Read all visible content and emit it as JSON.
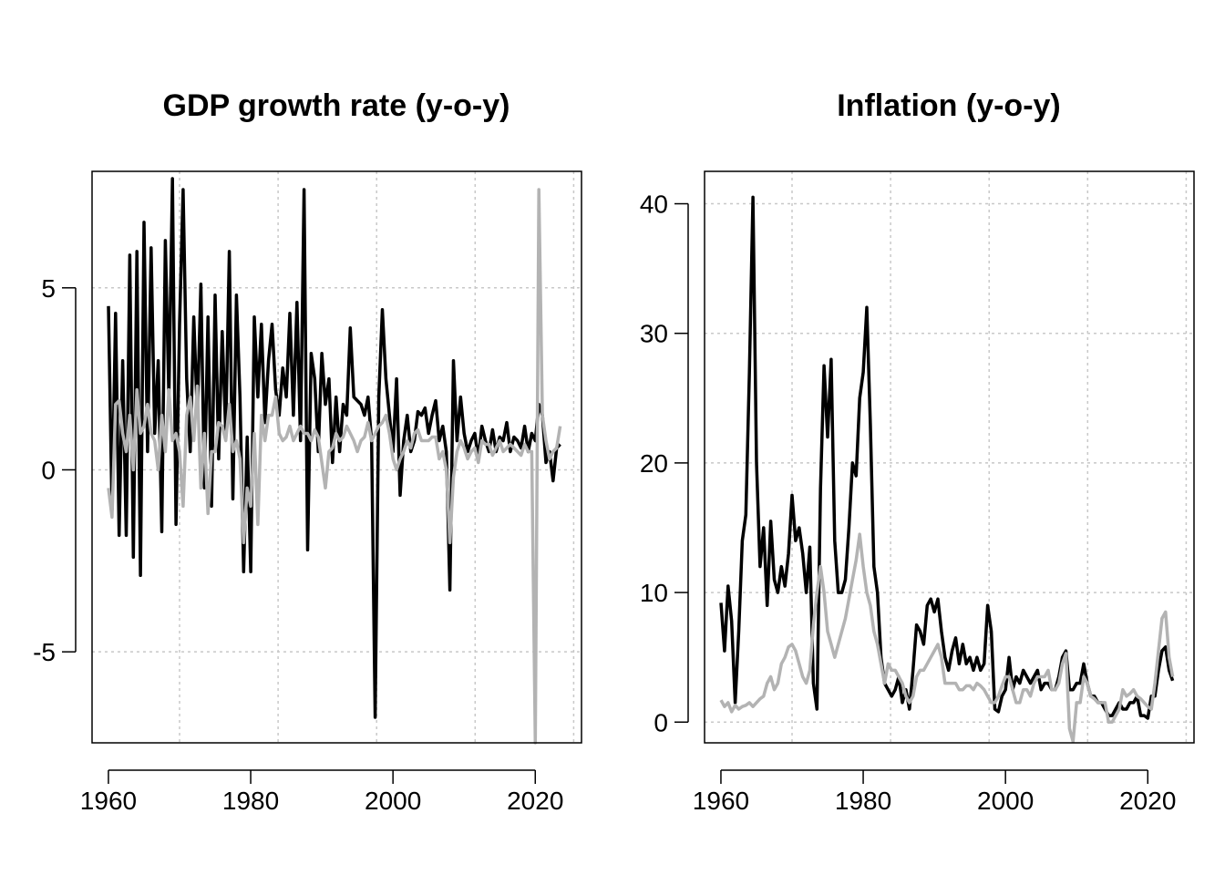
{
  "colors": {
    "series_primary": "#000000",
    "series_secondary": "#b3b3b3",
    "grid": "#c8c8c8"
  },
  "chart_data": [
    {
      "type": "line",
      "title": "GDP growth rate (y-o-y)",
      "xlabel": "",
      "ylabel": "",
      "xlim": [
        1957.7,
        2026.5
      ],
      "ylim": [
        -7.5,
        8.2
      ],
      "x_ticks": [
        "1960",
        "1980",
        "2000",
        "2020"
      ],
      "y_ticks": [
        "-5",
        "0",
        "5"
      ],
      "grid": true,
      "x_start": 1960,
      "x_step": 0.5,
      "series": [
        {
          "color": "#000000",
          "values": [
            4.5,
            -1.1,
            4.3,
            -1.8,
            3.0,
            -1.8,
            5.9,
            -2.4,
            6.0,
            -2.9,
            6.8,
            0.5,
            6.1,
            1.0,
            3.0,
            -1.7,
            6.3,
            2.0,
            8.0,
            -1.5,
            4.0,
            7.7,
            2.5,
            0.5,
            4.2,
            1.5,
            5.1,
            -0.5,
            4.2,
            -1.0,
            4.8,
            0.3,
            3.8,
            1.0,
            6.0,
            -0.8,
            4.8,
            2.0,
            -2.8,
            0.9,
            -2.8,
            4.2,
            2.0,
            4.0,
            1.3,
            3.0,
            4.0,
            2.2,
            1.5,
            2.8,
            2.0,
            4.3,
            1.5,
            4.6,
            0.8,
            7.7,
            -2.2,
            3.2,
            2.5,
            0.5,
            3.2,
            1.8,
            2.5,
            0.2,
            2.0,
            0.5,
            1.8,
            1.5,
            3.9,
            2.0,
            1.9,
            1.8,
            1.5,
            2.0,
            0.8,
            -6.8,
            2.0,
            4.4,
            2.5,
            1.5,
            0.5,
            2.5,
            -0.7,
            0.8,
            1.5,
            0.5,
            0.8,
            1.6,
            1.5,
            1.7,
            1.0,
            1.5,
            1.9,
            0.8,
            1.2,
            0.5,
            -3.3,
            3.0,
            0.8,
            2.0,
            1.0,
            0.5,
            0.8,
            1.0,
            0.3,
            1.2,
            0.8,
            0.5,
            1.1,
            0.5,
            0.9,
            0.8,
            1.3,
            0.5,
            0.9,
            0.8,
            0.6,
            1.2,
            0.5,
            1.0,
            0.8,
            1.8,
            1.5,
            0.2,
            0.5,
            -0.3,
            0.6,
            0.7
          ]
        },
        {
          "color": "#b3b3b3",
          "values": [
            -0.5,
            -1.3,
            1.8,
            1.9,
            1.0,
            0.5,
            1.5,
            0.0,
            2.2,
            1.0,
            1.2,
            1.8,
            1.0,
            0.8,
            0.0,
            1.5,
            0.5,
            2.2,
            0.8,
            1.0,
            0.5,
            -1.0,
            1.5,
            2.0,
            0.8,
            2.3,
            -0.5,
            1.0,
            -1.2,
            0.5,
            0.5,
            1.3,
            1.2,
            0.8,
            1.8,
            0.5,
            0.8,
            0.3,
            -2.0,
            -0.5,
            -1.0,
            1.0,
            -1.5,
            1.5,
            0.8,
            1.5,
            1.5,
            2.0,
            1.0,
            0.8,
            0.9,
            1.2,
            0.8,
            1.0,
            1.2,
            1.0,
            1.0,
            0.8,
            1.1,
            0.9,
            0.2,
            -0.5,
            0.5,
            0.6,
            1.0,
            0.8,
            0.9,
            1.2,
            1.0,
            0.8,
            0.5,
            0.8,
            0.9,
            1.3,
            0.8,
            1.0,
            1.2,
            1.3,
            1.5,
            1.0,
            0.3,
            0.0,
            0.3,
            0.5,
            0.8,
            0.6,
            1.0,
            1.1,
            0.8,
            0.8,
            0.8,
            0.9,
            0.9,
            0.3,
            0.5,
            0.0,
            -2.0,
            -0.2,
            0.5,
            0.8,
            0.6,
            0.3,
            0.5,
            0.6,
            0.2,
            0.8,
            0.7,
            0.7,
            0.4,
            0.6,
            0.8,
            0.5,
            0.6,
            0.7,
            0.6,
            0.5,
            0.4,
            0.7,
            0.5,
            0.5,
            -7.5,
            7.7,
            1.5,
            0.8,
            0.3,
            0.5,
            0.6,
            1.2
          ]
        }
      ]
    },
    {
      "type": "line",
      "title": "Inflation (y-o-y)",
      "xlabel": "",
      "ylabel": "",
      "xlim": [
        1957.7,
        2026.5
      ],
      "ylim": [
        -1.6,
        42.5
      ],
      "x_ticks": [
        "1960",
        "1980",
        "2000",
        "2020"
      ],
      "y_ticks": [
        "0",
        "10",
        "20",
        "30",
        "40"
      ],
      "grid": true,
      "x_start": 1960,
      "x_step": 0.5,
      "series": [
        {
          "color": "#000000",
          "values": [
            9.2,
            5.5,
            10.5,
            7.8,
            1.5,
            7.0,
            14,
            16,
            27,
            40.5,
            20,
            12,
            15,
            9,
            15.5,
            11,
            10,
            12,
            10.5,
            13,
            17.5,
            14,
            15,
            13,
            10,
            13.5,
            3,
            1,
            18,
            27.5,
            22,
            28,
            14,
            10,
            10,
            11,
            15,
            20,
            19,
            25,
            27,
            32,
            23,
            12,
            10,
            5,
            3,
            2.5,
            2,
            2.5,
            3.5,
            1.5,
            2.5,
            1,
            4,
            7.5,
            7,
            6,
            9,
            9.5,
            8.5,
            9.5,
            7,
            5,
            4,
            5.5,
            6.5,
            4.5,
            6,
            4.5,
            5,
            4,
            5,
            4,
            4.5,
            9,
            7,
            1,
            0.8,
            2,
            2.5,
            5,
            2.5,
            3.5,
            3,
            4,
            3.5,
            3,
            3.5,
            4,
            2.5,
            3,
            3,
            2.5,
            2.5,
            3.5,
            5,
            5.5,
            2.5,
            2.5,
            3,
            3,
            4.5,
            3,
            2,
            2,
            1.5,
            1.5,
            1,
            0.5,
            0.5,
            1,
            1.5,
            1,
            1,
            1.5,
            1.5,
            2,
            0.5,
            0.5,
            0.3,
            2,
            2,
            4,
            5.5,
            5.8,
            4,
            3.2
          ]
        },
        {
          "color": "#b3b3b3",
          "values": [
            1.7,
            1.2,
            1.5,
            0.8,
            1.3,
            1.0,
            1.2,
            1.3,
            1.5,
            1.2,
            1.5,
            1.8,
            2.0,
            3.0,
            3.5,
            2.5,
            3.0,
            4.5,
            5.0,
            5.8,
            6.0,
            5.5,
            4.5,
            3.5,
            3.0,
            4.0,
            7.5,
            10,
            12,
            10,
            7,
            6,
            5,
            6,
            7,
            8,
            9.5,
            11,
            12.5,
            14.5,
            12,
            10,
            9,
            7,
            6,
            4.5,
            3,
            4.5,
            4,
            4,
            3.5,
            3,
            2,
            1.5,
            2,
            3.5,
            4,
            4,
            4.5,
            5,
            5.5,
            6,
            5,
            3,
            3,
            3,
            3,
            2.5,
            2.5,
            2.8,
            2.8,
            2.5,
            3,
            2.8,
            2.5,
            2,
            1.5,
            1.5,
            2,
            2.8,
            3.5,
            3.5,
            2.5,
            1.5,
            1.5,
            2.5,
            2.5,
            2,
            3,
            3.5,
            3.5,
            3.5,
            4,
            2.5,
            2.5,
            3,
            4.5,
            5.3,
            -0.5,
            -1.5,
            1.5,
            1.5,
            3.5,
            3,
            2,
            1.8,
            1.5,
            1.5,
            1.5,
            0,
            0,
            0.5,
            1,
            2.5,
            2,
            2.2,
            2.5,
            2,
            1.8,
            1.5,
            1.2,
            1,
            3,
            5.5,
            8,
            8.5,
            5,
            3.5
          ]
        }
      ]
    }
  ]
}
